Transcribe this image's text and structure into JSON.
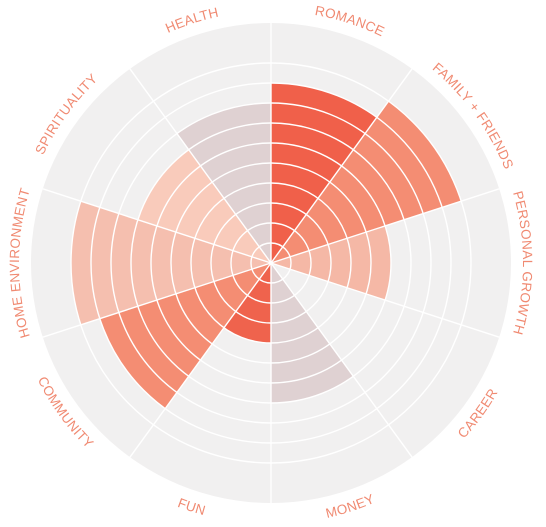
{
  "chart_data": {
    "type": "polar-area",
    "title": "",
    "rings": 10,
    "max_value": 10,
    "categories": [
      "ROMANCE",
      "FAMILY + FRIENDS",
      "PERSONAL GROWTH",
      "CAREER",
      "MONEY",
      "FUN",
      "COMMUNITY",
      "HOME ENVIRONMENT",
      "SPIRITUALITY",
      "HEALTH"
    ],
    "values": [
      9,
      10,
      6,
      0,
      7,
      4,
      9,
      10,
      7,
      8
    ],
    "segment_colors": [
      "#f0604a",
      "#f48d73",
      "#f5b8a6",
      "#f5b8a6",
      "#dfd1d2",
      "#ef634d",
      "#f48d73",
      "#f5bfaf",
      "#f9cbbb",
      "#dfd1d2"
    ],
    "background_color": "#f1f0f0",
    "grid_color": "#ffffff",
    "label_color": "#f08a72",
    "grid": true,
    "legend": "none"
  }
}
